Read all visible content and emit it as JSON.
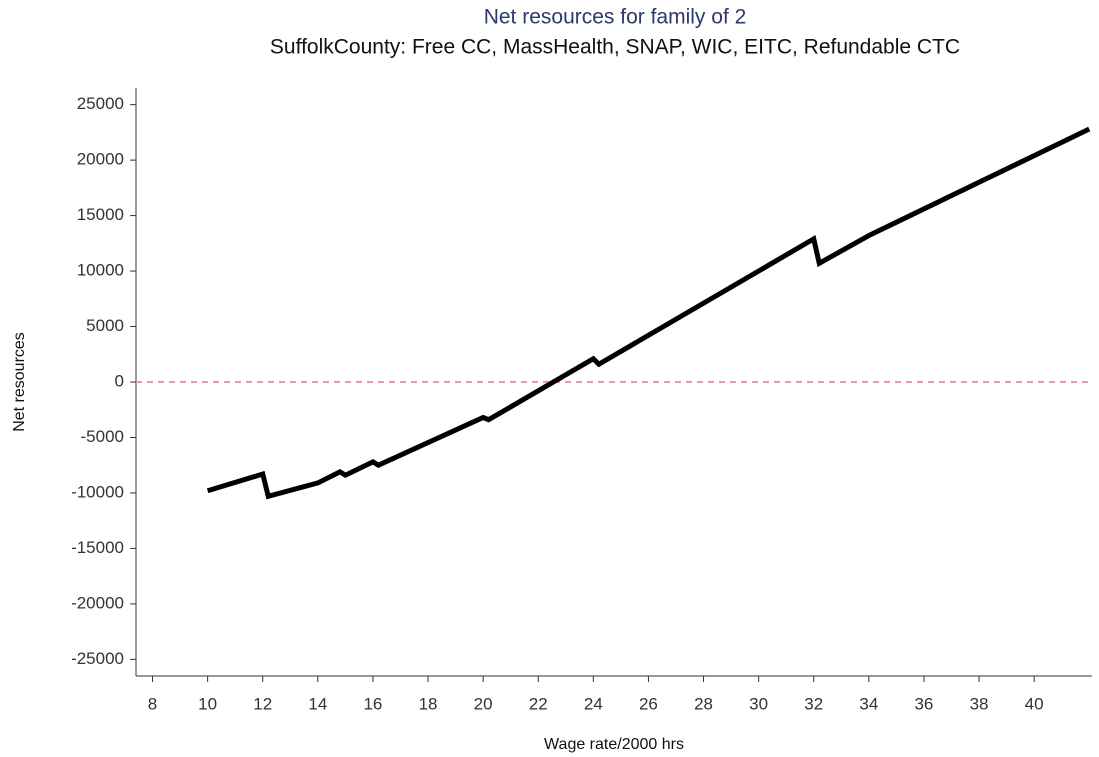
{
  "chart_data": {
    "type": "line",
    "title": "Net resources for family of 2",
    "subtitle": "SuffolkCounty: Free CC, MassHealth, SNAP, WIC, EITC, Refundable CTC",
    "x_label": "Wage rate/2000 hrs",
    "y_label": "Net resources",
    "x": [
      10,
      12,
      12.2,
      14,
      14.8,
      15,
      16,
      16.2,
      20,
      20.2,
      24,
      24.2,
      32,
      32.2,
      34,
      38,
      42
    ],
    "series": [
      {
        "name": "Net resources",
        "color": "#000000",
        "values": [
          -9800,
          -8300,
          -10300,
          -9100,
          -8100,
          -8400,
          -7200,
          -7500,
          -3200,
          -3400,
          2100,
          1600,
          12900,
          10700,
          13200,
          18000,
          22800
        ]
      }
    ],
    "hline": 0,
    "hline_color": "#e39ab8",
    "xlim": [
      7.4,
      42.1
    ],
    "xticks": [
      8,
      10,
      12,
      14,
      16,
      18,
      20,
      22,
      24,
      26,
      28,
      30,
      32,
      34,
      36,
      38,
      40
    ],
    "ylim": [
      -26500,
      26500
    ],
    "yticks": [
      -25000,
      -20000,
      -15000,
      -10000,
      -5000,
      0,
      5000,
      10000,
      15000,
      20000,
      25000
    ]
  }
}
